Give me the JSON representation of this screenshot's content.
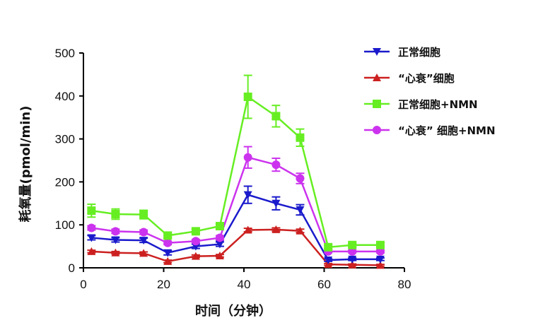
{
  "chart_data": {
    "type": "line",
    "title": "",
    "xlabel": "时间（分钟）",
    "ylabel": "耗氧量(pmol/min)",
    "xlim": [
      0,
      80
    ],
    "ylim": [
      0,
      500
    ],
    "xticks": [
      0,
      20,
      40,
      60,
      80
    ],
    "yticks": [
      0,
      100,
      200,
      300,
      400,
      500
    ],
    "grid": false,
    "legend_position": "top-right",
    "x": [
      2,
      8,
      15,
      21,
      28,
      34,
      41,
      48,
      54,
      61,
      67,
      74
    ],
    "series": [
      {
        "name": "正常细胞",
        "color": "#1a1acc",
        "marker": "triangle-down",
        "values": [
          70,
          65,
          64,
          35,
          50,
          55,
          170,
          150,
          135,
          18,
          20,
          20
        ],
        "errors": [
          5,
          5,
          5,
          5,
          5,
          5,
          20,
          15,
          12,
          3,
          3,
          3
        ]
      },
      {
        "name": "“心衰”细胞",
        "color": "#cc2020",
        "marker": "triangle-up",
        "values": [
          38,
          35,
          34,
          15,
          27,
          28,
          88,
          89,
          86,
          8,
          7,
          6
        ],
        "errors": [
          3,
          3,
          3,
          3,
          3,
          3,
          4,
          4,
          4,
          2,
          2,
          2
        ]
      },
      {
        "name": "正常细胞+NMN",
        "color": "#66ee22",
        "marker": "square",
        "values": [
          133,
          125,
          124,
          75,
          85,
          97,
          398,
          353,
          303,
          48,
          53,
          53
        ],
        "errors": [
          15,
          12,
          10,
          5,
          5,
          6,
          50,
          25,
          20,
          4,
          4,
          4
        ]
      },
      {
        "name": "“心衰” 细胞+NMN",
        "color": "#cc33ee",
        "marker": "circle",
        "values": [
          93,
          85,
          83,
          58,
          62,
          70,
          257,
          240,
          208,
          38,
          38,
          38
        ],
        "errors": [
          5,
          5,
          5,
          4,
          4,
          5,
          25,
          15,
          12,
          3,
          3,
          3
        ]
      }
    ]
  }
}
